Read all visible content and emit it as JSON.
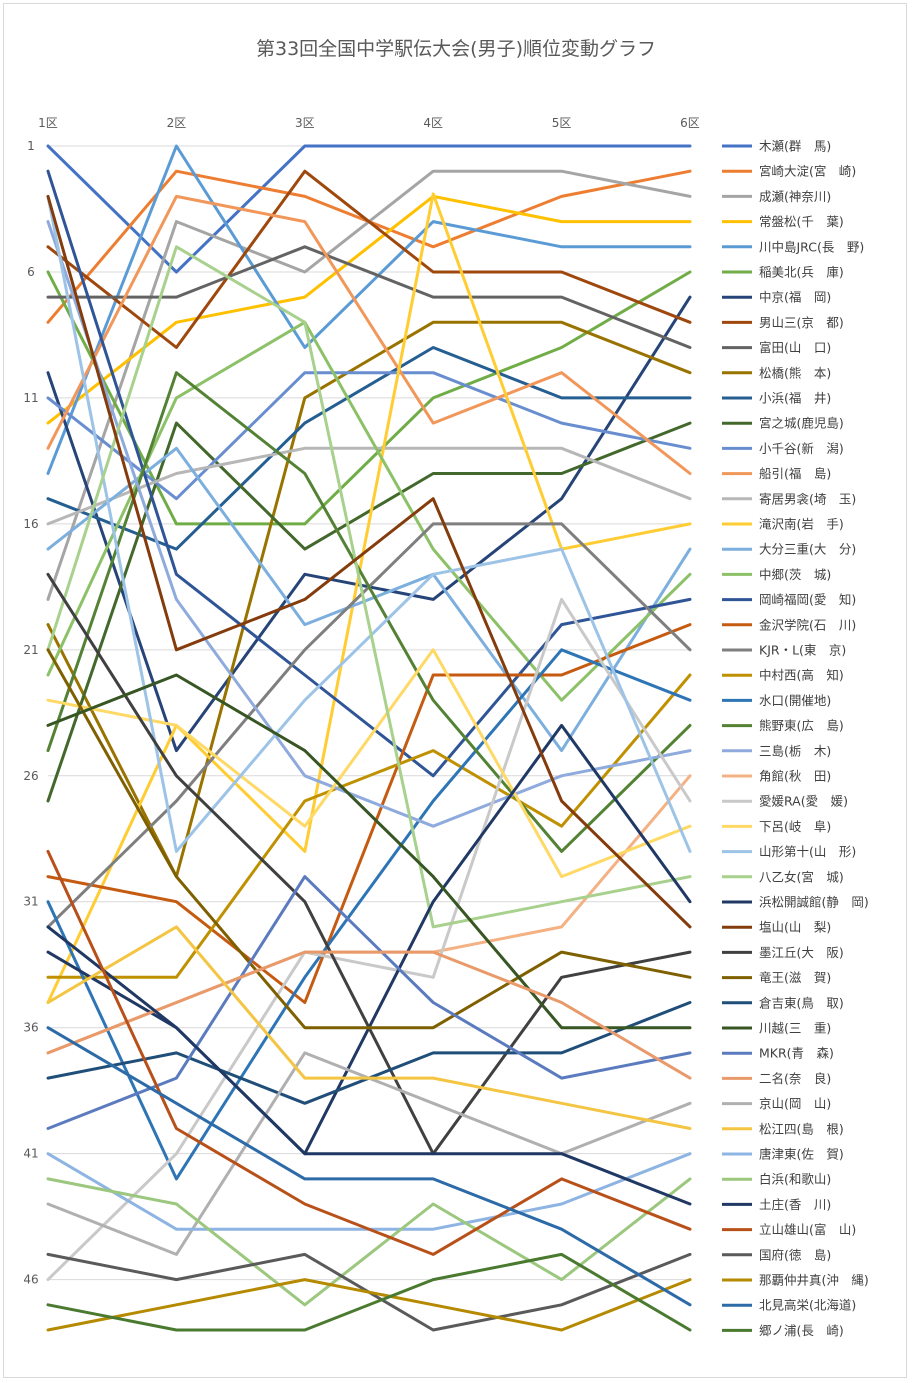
{
  "chart_data": {
    "type": "line",
    "title": "第33回全国中学駅伝大会(男子)順位変動グラフ",
    "x": [
      "1区",
      "2区",
      "3区",
      "4区",
      "5区",
      "6区"
    ],
    "y_ticks": [
      1,
      6,
      11,
      16,
      21,
      26,
      31,
      36,
      41,
      46
    ],
    "ylim": [
      1,
      48
    ],
    "y_inverted": true,
    "grid": true,
    "legend_position": "right",
    "series": [
      {
        "name": "木瀬(群　馬)",
        "color": "#4472c4",
        "values": [
          1,
          6,
          1,
          1,
          1,
          1
        ]
      },
      {
        "name": "宮崎大淀(宮　崎)",
        "color": "#ed7d31",
        "values": [
          8,
          2,
          3,
          5,
          3,
          2
        ]
      },
      {
        "name": "成瀬(神奈川)",
        "color": "#a5a5a5",
        "values": [
          19,
          4,
          6,
          2,
          2,
          3
        ]
      },
      {
        "name": "常盤松(千　葉)",
        "color": "#ffc000",
        "values": [
          12,
          8,
          7,
          3,
          4,
          4
        ]
      },
      {
        "name": "川中島JRC(長　野)",
        "color": "#5b9bd5",
        "values": [
          14,
          1,
          9,
          4,
          5,
          5
        ]
      },
      {
        "name": "稲美北(兵　庫)",
        "color": "#70ad47",
        "values": [
          6,
          16,
          16,
          11,
          9,
          6
        ]
      },
      {
        "name": "中京(福　岡)",
        "color": "#264478",
        "values": [
          10,
          25,
          18,
          19,
          15,
          7
        ]
      },
      {
        "name": "男山三(京　都)",
        "color": "#9e480e",
        "values": [
          5,
          9,
          2,
          6,
          6,
          8
        ]
      },
      {
        "name": "富田(山　口)",
        "color": "#636363",
        "values": [
          7,
          7,
          5,
          7,
          7,
          9
        ]
      },
      {
        "name": "松橋(熊　本)",
        "color": "#997300",
        "values": [
          20,
          30,
          11,
          8,
          8,
          10
        ]
      },
      {
        "name": "小浜(福　井)",
        "color": "#255e91",
        "values": [
          15,
          17,
          12,
          9,
          11,
          11
        ]
      },
      {
        "name": "宮之城(鹿児島)",
        "color": "#43682b",
        "values": [
          27,
          12,
          17,
          14,
          14,
          12
        ]
      },
      {
        "name": "小千谷(新　潟)",
        "color": "#698ed0",
        "values": [
          11,
          15,
          10,
          10,
          12,
          13
        ]
      },
      {
        "name": "船引(福　島)",
        "color": "#f1975a",
        "values": [
          13,
          3,
          4,
          12,
          10,
          14
        ]
      },
      {
        "name": "寄居男衾(埼　玉)",
        "color": "#b7b7b7",
        "values": [
          16,
          14,
          13,
          13,
          13,
          15
        ]
      },
      {
        "name": "滝沢南(岩　手)",
        "color": "#ffcd33",
        "values": [
          35,
          24,
          29,
          2.9,
          17,
          16
        ]
      },
      {
        "name": "大分三重(大　分)",
        "color": "#7cafdd",
        "values": [
          17,
          13,
          20,
          18,
          25,
          17
        ]
      },
      {
        "name": "中郷(茨　城)",
        "color": "#8cc168",
        "values": [
          22,
          11,
          8,
          17,
          23,
          18
        ]
      },
      {
        "name": "岡崎福岡(愛　知)",
        "color": "#2f5597",
        "values": [
          2,
          18,
          22,
          26,
          20,
          19
        ]
      },
      {
        "name": "金沢学院(石　川)",
        "color": "#c55a11",
        "values": [
          30,
          31,
          35,
          22,
          22,
          20
        ]
      },
      {
        "name": "KJR・L(東　京)",
        "color": "#7f7f7f",
        "values": [
          32,
          27,
          21,
          16,
          16,
          21
        ]
      },
      {
        "name": "中村西(高　知)",
        "color": "#bf9000",
        "values": [
          34,
          34,
          27,
          25,
          28,
          22
        ]
      },
      {
        "name": "水口(開催地)",
        "color": "#2e75b6",
        "values": [
          31,
          42,
          34,
          27,
          21,
          23
        ]
      },
      {
        "name": "熊野東(広　島)",
        "color": "#548235",
        "values": [
          25,
          10,
          14,
          23,
          29,
          24
        ]
      },
      {
        "name": "三島(栃　木)",
        "color": "#8faadc",
        "values": [
          4,
          19,
          26,
          28,
          26,
          25
        ]
      },
      {
        "name": "角館(秋　田)",
        "color": "#f4b183",
        "values": [
          37,
          35,
          33,
          33,
          32,
          26
        ]
      },
      {
        "name": "愛媛RA(愛　媛)",
        "color": "#c9c9c9",
        "values": [
          46,
          41,
          33,
          34,
          19,
          27
        ]
      },
      {
        "name": "下呂(岐　阜)",
        "color": "#ffd966",
        "values": [
          23,
          24,
          28,
          21,
          30,
          28
        ]
      },
      {
        "name": "山形第十(山　形)",
        "color": "#9dc3e6",
        "values": [
          3,
          29,
          23,
          18,
          17,
          29
        ]
      },
      {
        "name": "八乙女(宮　城)",
        "color": "#a9d18e",
        "values": [
          21,
          5,
          8,
          32,
          31,
          30
        ]
      },
      {
        "name": "浜松開誠館(静　岡)",
        "color": "#203864",
        "values": [
          33,
          36,
          41,
          31,
          24,
          31
        ]
      },
      {
        "name": "塩山(山　梨)",
        "color": "#843c0c",
        "values": [
          3,
          21,
          19,
          15,
          27,
          32
        ]
      },
      {
        "name": "墨江丘(大　阪)",
        "color": "#404040",
        "values": [
          18,
          26,
          31,
          41,
          34,
          33
        ]
      },
      {
        "name": "竜王(滋　賀)",
        "color": "#7f6000",
        "values": [
          21,
          30,
          36,
          36,
          33,
          34
        ]
      },
      {
        "name": "倉吉東(鳥　取)",
        "color": "#1f4e79",
        "values": [
          38,
          37,
          39,
          37,
          37,
          35
        ]
      },
      {
        "name": "川越(三　重)",
        "color": "#375623",
        "values": [
          24,
          22,
          25,
          30,
          36,
          36
        ]
      },
      {
        "name": "MKR(青　森)",
        "color": "#5b7bbf",
        "values": [
          40,
          38,
          30,
          35,
          38,
          37
        ]
      },
      {
        "name": "二名(奈　良)",
        "color": "#e89a6a",
        "values": [
          37,
          35,
          33,
          33,
          35,
          38
        ]
      },
      {
        "name": "京山(岡　山)",
        "color": "#b0b0b0",
        "values": [
          43,
          45,
          37,
          39,
          41,
          39
        ]
      },
      {
        "name": "松江四(島　根)",
        "color": "#f4c542",
        "values": [
          35,
          32,
          38,
          38,
          39,
          40
        ]
      },
      {
        "name": "唐津東(佐　賀)",
        "color": "#8db4e2",
        "values": [
          41,
          44,
          44,
          44,
          43,
          41
        ]
      },
      {
        "name": "白浜(和歌山)",
        "color": "#9bc77e",
        "values": [
          42,
          43,
          47,
          43,
          46,
          42
        ]
      },
      {
        "name": "土庄(香　川)",
        "color": "#1f3864",
        "values": [
          32,
          36,
          41,
          41,
          41,
          43
        ]
      },
      {
        "name": "立山雄山(富　山)",
        "color": "#b8501a",
        "values": [
          29,
          40,
          43,
          45,
          42,
          44
        ]
      },
      {
        "name": "国府(徳　島)",
        "color": "#5a5a5a",
        "values": [
          45,
          46,
          45,
          48,
          47,
          45
        ]
      },
      {
        "name": "那覇仲井真(沖　縄)",
        "color": "#b58a00",
        "values": [
          48,
          47,
          46,
          47,
          48,
          46
        ]
      },
      {
        "name": "北見高栄(北海道)",
        "color": "#2c6aa8",
        "values": [
          36,
          39,
          42,
          42,
          44,
          47
        ]
      },
      {
        "name": "郷ノ浦(長　崎)",
        "color": "#4a7a30",
        "values": [
          47,
          48,
          48,
          46,
          45,
          48
        ]
      }
    ]
  }
}
